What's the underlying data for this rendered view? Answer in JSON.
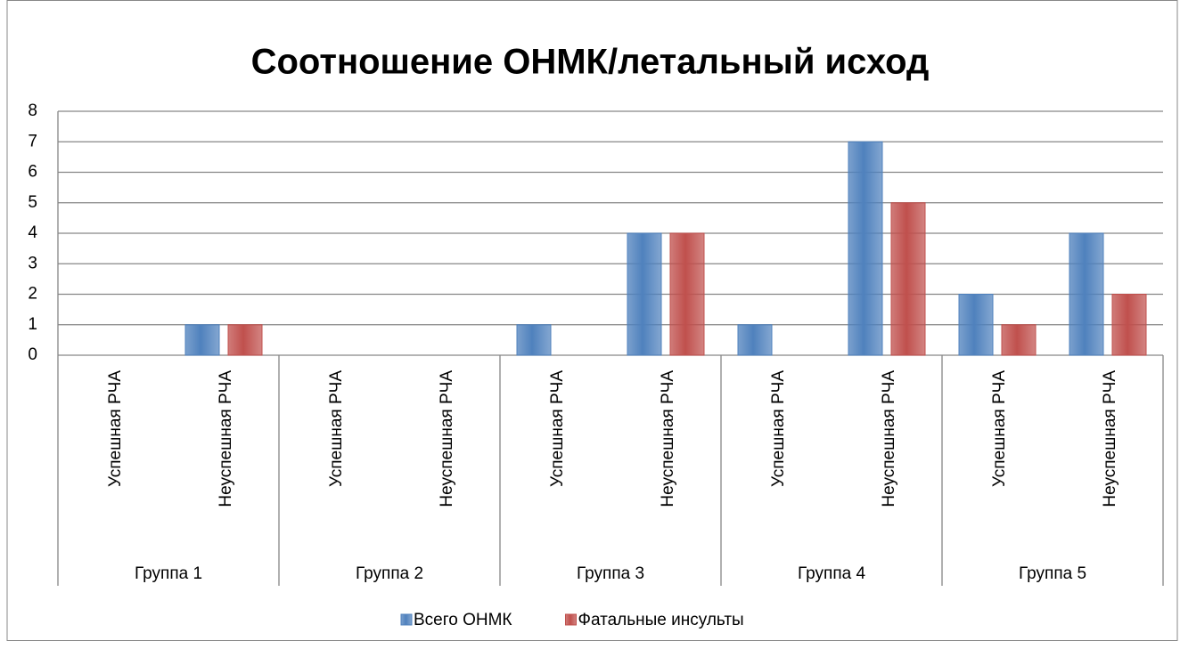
{
  "chart_data": {
    "type": "bar",
    "title": "Соотношение ОНМК/летальный исход",
    "categories": [
      "Успешная РЧА",
      "Неуспешная РЧА",
      "Успешная РЧА",
      "Неуспешная РЧА",
      "Успешная РЧА",
      "Неуспешная РЧА",
      "Успешная РЧА",
      "Неуспешная РЧА",
      "Успешная РЧА",
      "Неуспешная РЧА"
    ],
    "groups": [
      "Группа 1",
      "Группа 2",
      "Группа 3",
      "Группа 4",
      "Группа 5"
    ],
    "series": [
      {
        "name": "Всего ОНМК",
        "color": "#4f81bd",
        "values": [
          0,
          1,
          0,
          0,
          1,
          4,
          1,
          7,
          2,
          4
        ]
      },
      {
        "name": "Фатальные инсульты",
        "color": "#c0504d",
        "values": [
          0,
          1,
          0,
          0,
          0,
          4,
          0,
          5,
          1,
          2
        ]
      }
    ],
    "ylim": [
      0,
      8
    ],
    "yticks": [
      0,
      1,
      2,
      3,
      4,
      5,
      6,
      7,
      8
    ],
    "grid": true,
    "legend": "bottom"
  }
}
